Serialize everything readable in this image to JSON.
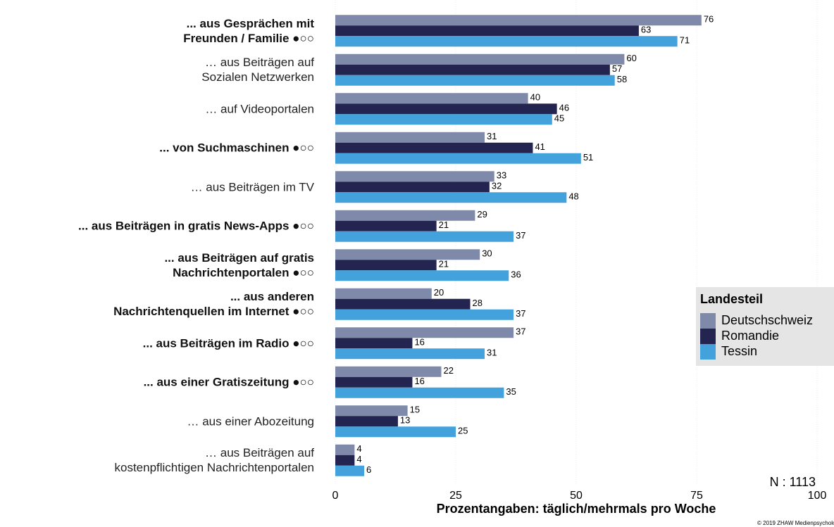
{
  "chart_data": {
    "type": "hbar",
    "categories": [
      "... aus Gesprächen mit\nFreunden / Familie ●○○",
      "… aus Beiträgen auf\nSozialen Netzwerken",
      "… auf Videoportalen",
      "... von Suchmaschinen ●○○",
      "… aus Beiträgen im TV",
      "... aus Beiträgen in gratis News-Apps ●○○",
      "... aus Beiträgen auf gratis\nNachrichtenportalen ●○○",
      "... aus anderen\nNachrichtenquellen im Internet ●○○",
      "... aus Beiträgen im Radio ●○○",
      "... aus einer Gratiszeitung ●○○",
      "… aus einer Abozeitung",
      "… aus Beiträgen auf\nkostenpflichtigen Nachrichtenportalen"
    ],
    "category_bold": [
      true,
      false,
      false,
      true,
      false,
      true,
      true,
      true,
      true,
      true,
      false,
      false
    ],
    "series": [
      {
        "name": "Deutschschweiz",
        "color": "#7f8aab",
        "values": [
          76,
          60,
          40,
          31,
          33,
          29,
          30,
          20,
          37,
          22,
          15,
          4
        ]
      },
      {
        "name": "Romandie",
        "color": "#23244f",
        "values": [
          63,
          57,
          46,
          41,
          32,
          21,
          21,
          28,
          16,
          16,
          13,
          4
        ]
      },
      {
        "name": "Tessin",
        "color": "#43a2db",
        "values": [
          71,
          58,
          45,
          51,
          48,
          37,
          36,
          37,
          31,
          35,
          25,
          6
        ]
      }
    ],
    "legend_title": "Landesteil",
    "legend": "right",
    "xlabel": "Prozentangaben: täglich/mehrmals pro Woche",
    "xlim": [
      0,
      100
    ],
    "xticks": [
      0,
      25,
      50,
      75,
      100
    ],
    "grid": true,
    "annotation": "N : 1113",
    "credit": "© 2019 ZHAW Medienpsychologie"
  }
}
